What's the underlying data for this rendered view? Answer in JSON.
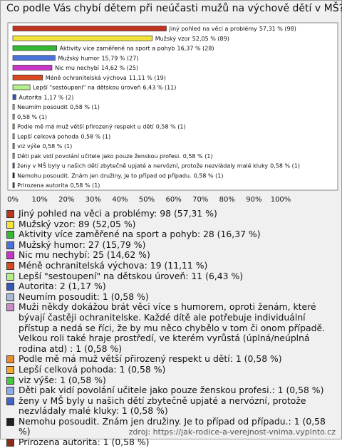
{
  "chart_data": {
    "type": "bar",
    "orientation": "horizontal",
    "title": "Co podle Vás chybí dětem při neúčasti mužů na výchově dětí v MŠ?",
    "categories": [
      "Jiný pohled na věci a problémy",
      "Mužský vzor",
      "Aktivity více zaměřené na sport a pohyb",
      "Mužský humor",
      "Nic mu nechybí",
      "Méně ochranitelská výchova",
      "Lepší \"sestoupení\" na dětskou úroveň",
      "Autorita",
      "Neumím posoudit",
      null,
      "Podle mě má muž větší přirozený respekt u dětí",
      "Lepší celková pohoda",
      "viz výše",
      "Děti pak vidí povolání učitele jako pouze ženskou profesi.",
      "ženy v MŠ byly u našich dětí zbytečně upjaté a nervózní, protože nezvládaly malé kluky",
      "Nemohu posoudit. Znám jen družiny. Je to případ od případu.",
      "Prirozena autorita"
    ],
    "values": [
      57.31,
      52.05,
      16.37,
      15.79,
      14.62,
      11.11,
      6.43,
      1.17,
      0.58,
      0.58,
      0.58,
      0.58,
      0.58,
      0.58,
      0.58,
      0.58,
      0.58
    ],
    "value_labels": [
      "57,31 % (98)",
      "52,05 % (89)",
      "16,37 % (28)",
      "15,79 % (27)",
      "14,62 % (25)",
      "11,11 % (19)",
      "6,43 % (11)",
      "1,17 % (2)",
      "0,58 % (1)",
      "0,58 % (1)",
      "0,58 % (1)",
      "0,58 % (1)",
      "0,58 % (1)",
      "0,58 % (1)",
      "0,58 % (1)",
      "0,58 % (1)",
      "0,58 % (1)"
    ],
    "colors": [
      "#c0341f",
      "#f2e33a",
      "#34b834",
      "#4a72d8",
      "#c935c9",
      "#d9481f",
      "#b2ee8c",
      "#3656b8",
      "#aab8d8",
      "#c98bc9",
      "#ea8a2c",
      "#f7a92e",
      "#46c846",
      "#8aaaea",
      "#4463c8",
      "#222222",
      "#8e2c1c"
    ],
    "legend_labels": [
      "Jiný pohled na věci a problémy: 98 (57,31 %)",
      "Mužský vzor: 89 (52,05 %)",
      "Aktivity více zaměřené na sport a pohyb: 28 (16,37 %)",
      "Mužský humor: 27 (15,79 %)",
      "Nic mu nechybí: 25 (14,62 %)",
      "Méně ochranitelská výchova: 19 (11,11 %)",
      "Lepší \"sestoupení\" na dětskou úroveň: 11 (6,43 %)",
      "Autorita: 2 (1,17 %)",
      "Neumím posoudit: 1 (0,58 %)",
      "Muži někdy dokážou brát věci více s humorem, oproti ženám, které bývají častěji ochranitelske. Každé dítě ale potřebuje individuální přístup a nedá se říci, že by mu něco chybělo v tom či onom případě. Velkou roli také hraje prostředí, ve kterém vyrůstá (úplná/neúplná rodina atd) : 1 (0,58 %)",
      "Podle mě má muž větší přirozený respekt u dětí: 1 (0,58 %)",
      "Lepší celková pohoda: 1 (0,58 %)",
      "viz výše: 1 (0,58 %)",
      "Děti pak vidí povolání učitele jako pouze ženskou profesi.: 1 (0,58 %)",
      "ženy v MŠ byly u našich dětí zbytečně upjaté a nervózní, protože nezvládaly malé kluky: 1 (0,58 %)",
      "Nemohu posoudit. Znám jen družiny. Je to případ od případu.: 1 (0,58 %)",
      "Prirozena autorita: 1 (0,58 %)"
    ],
    "xlim": [
      0,
      100
    ],
    "xticks": [
      {
        "value": 0,
        "label": "0%"
      },
      {
        "value": 10,
        "label": "10%"
      },
      {
        "value": 20,
        "label": "20%"
      },
      {
        "value": 30,
        "label": "30%"
      },
      {
        "value": 40,
        "label": "40%"
      },
      {
        "value": 50,
        "label": "50%"
      },
      {
        "value": 60,
        "label": "60%"
      },
      {
        "value": 70,
        "label": "70%"
      },
      {
        "value": 80,
        "label": "80%"
      },
      {
        "value": 90,
        "label": "90%"
      },
      {
        "value": 100,
        "label": "100%"
      }
    ],
    "grid": false,
    "source": "zdroj: https://jak-rodice-a-verejnost-vnima.vyplnto.cz"
  }
}
